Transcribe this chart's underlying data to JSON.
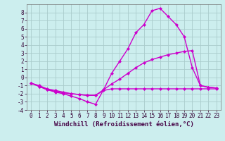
{
  "xlabel": "Windchill (Refroidissement éolien,°C)",
  "bg_color": "#cceeee",
  "grid_color": "#aacccc",
  "line_color": "#cc00cc",
  "xlim": [
    -0.5,
    23.5
  ],
  "ylim": [
    -4,
    9
  ],
  "yticks": [
    -4,
    -3,
    -2,
    -1,
    0,
    1,
    2,
    3,
    4,
    5,
    6,
    7,
    8
  ],
  "xticks": [
    0,
    1,
    2,
    3,
    4,
    5,
    6,
    7,
    8,
    9,
    10,
    11,
    12,
    13,
    14,
    15,
    16,
    17,
    18,
    19,
    20,
    21,
    22,
    23
  ],
  "x": [
    0,
    1,
    2,
    3,
    4,
    5,
    6,
    7,
    8,
    9,
    10,
    11,
    12,
    13,
    14,
    15,
    16,
    17,
    18,
    19,
    20,
    21,
    22,
    23
  ],
  "line_high": [
    -0.7,
    -1.1,
    -1.5,
    -1.8,
    -2.0,
    -2.3,
    -2.6,
    -3.0,
    -3.3,
    -1.5,
    0.5,
    2.0,
    3.5,
    5.5,
    6.5,
    8.2,
    8.5,
    7.5,
    6.5,
    5.0,
    1.2,
    -1.0,
    -1.2,
    -1.3
  ],
  "line_mid": [
    -0.7,
    -1.0,
    -1.4,
    -1.6,
    -1.8,
    -2.0,
    -2.1,
    -2.2,
    -2.2,
    -1.5,
    -0.8,
    -0.2,
    0.5,
    1.2,
    1.8,
    2.2,
    2.5,
    2.8,
    3.0,
    3.2,
    3.3,
    -1.0,
    -1.2,
    -1.3
  ],
  "line_flat": [
    -0.7,
    -1.1,
    -1.5,
    -1.7,
    -1.9,
    -2.0,
    -2.1,
    -2.2,
    -2.2,
    -1.6,
    -1.4,
    -1.4,
    -1.4,
    -1.4,
    -1.4,
    -1.4,
    -1.4,
    -1.4,
    -1.4,
    -1.4,
    -1.4,
    -1.4,
    -1.4,
    -1.4
  ],
  "marker": "D",
  "marker_size": 2,
  "linewidth": 1.0,
  "xlabel_fontsize": 6.5,
  "tick_fontsize": 5.5
}
